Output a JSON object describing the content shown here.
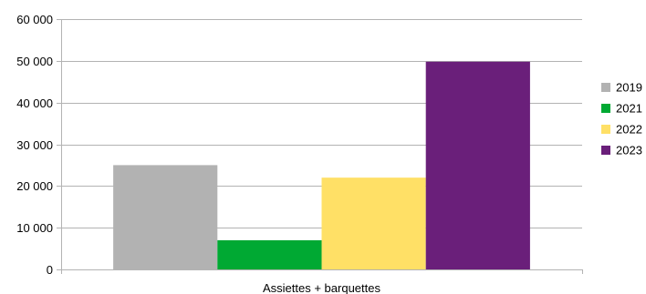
{
  "chart_data": {
    "type": "bar",
    "categories": [
      "Assiettes + barquettes"
    ],
    "series": [
      {
        "name": "2019",
        "color": "#b2b2b2",
        "values": [
          25000
        ]
      },
      {
        "name": "2021",
        "color": "#00a933",
        "values": [
          7000
        ]
      },
      {
        "name": "2022",
        "color": "#ffe066",
        "values": [
          22000
        ]
      },
      {
        "name": "2023",
        "color": "#6a1f7a",
        "values": [
          49800
        ]
      }
    ],
    "title": "",
    "xlabel": "",
    "ylabel": "",
    "ylim": [
      0,
      60000
    ],
    "yticks": [
      0,
      10000,
      20000,
      30000,
      40000,
      50000,
      60000
    ],
    "ytick_labels": [
      "0",
      "10 000",
      "20 000",
      "30 000",
      "40 000",
      "50 000",
      "60 000"
    ],
    "grid": "horizontal",
    "legend_position": "right"
  }
}
